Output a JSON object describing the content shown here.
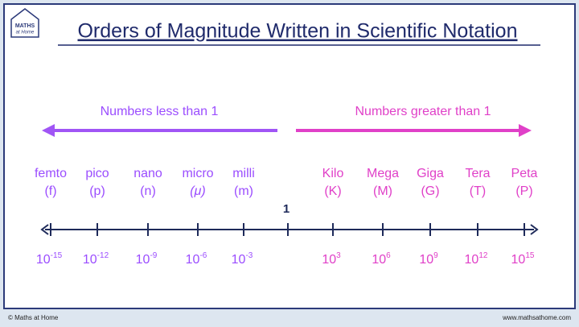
{
  "logo": {
    "line1": "MATHS",
    "line2": "at Home"
  },
  "title": "Orders of Magnitude Written in Scientific Notation",
  "left_label": "Numbers less than 1",
  "right_label": "Numbers greater than 1",
  "center_label": "1",
  "prefixes": [
    {
      "name": "femto",
      "symbol": "(f)",
      "base": "10",
      "exponent": "-15"
    },
    {
      "name": "pico",
      "symbol": "(p)",
      "base": "10",
      "exponent": "-12"
    },
    {
      "name": "nano",
      "symbol": "(n)",
      "base": "10",
      "exponent": "-9"
    },
    {
      "name": "micro",
      "symbol": "(μ)",
      "base": "10",
      "exponent": "-6"
    },
    {
      "name": "milli",
      "symbol": "(m)",
      "base": "10",
      "exponent": "-3"
    },
    {
      "name": "Kilo",
      "symbol": "(K)",
      "base": "10",
      "exponent": "3"
    },
    {
      "name": "Mega",
      "symbol": "(M)",
      "base": "10",
      "exponent": "6"
    },
    {
      "name": "Giga",
      "symbol": "(G)",
      "base": "10",
      "exponent": "9"
    },
    {
      "name": "Tera",
      "symbol": "(T)",
      "base": "10",
      "exponent": "12"
    },
    {
      "name": "Peta",
      "symbol": "(P)",
      "base": "10",
      "exponent": "15"
    }
  ],
  "footer": {
    "left": "© Maths at Home",
    "right": "www.mathsathome.com"
  }
}
